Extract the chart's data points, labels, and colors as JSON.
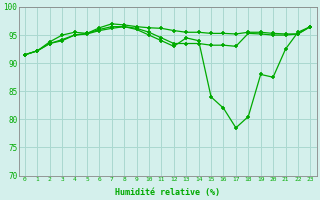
{
  "title": "",
  "xlabel": "Humidité relative (%)",
  "ylabel": "",
  "background_color": "#d4f0ec",
  "grid_color": "#aad8d0",
  "line_color": "#00aa00",
  "ylim": [
    70,
    100
  ],
  "xlim": [
    -0.5,
    23.5
  ],
  "yticks": [
    70,
    75,
    80,
    85,
    90,
    95,
    100
  ],
  "xticks": [
    0,
    1,
    2,
    3,
    4,
    5,
    6,
    7,
    8,
    9,
    10,
    11,
    12,
    13,
    14,
    15,
    16,
    17,
    18,
    19,
    20,
    21,
    22,
    23
  ],
  "series": [
    [
      91.5,
      92.2,
      93.8,
      95.0,
      95.5,
      95.3,
      96.3,
      97.0,
      96.8,
      96.5,
      96.3,
      96.2,
      95.8,
      95.5,
      95.5,
      95.3,
      95.3,
      95.2,
      95.5,
      95.5,
      95.3,
      95.2,
      95.2,
      96.5
    ],
    [
      91.5,
      92.2,
      93.5,
      94.2,
      95.0,
      95.3,
      96.0,
      96.5,
      96.5,
      96.2,
      95.5,
      94.5,
      93.5,
      93.5,
      93.5,
      93.2,
      93.2,
      93.0,
      95.3,
      95.2,
      95.0,
      95.0,
      95.2,
      96.5
    ],
    [
      91.5,
      92.2,
      93.5,
      94.0,
      95.0,
      95.2,
      95.8,
      96.2,
      96.5,
      96.0,
      95.0,
      94.0,
      93.0,
      94.5,
      94.0,
      84.0,
      82.0,
      78.5,
      80.5,
      88.0,
      87.5,
      92.5,
      95.5,
      96.5
    ]
  ]
}
